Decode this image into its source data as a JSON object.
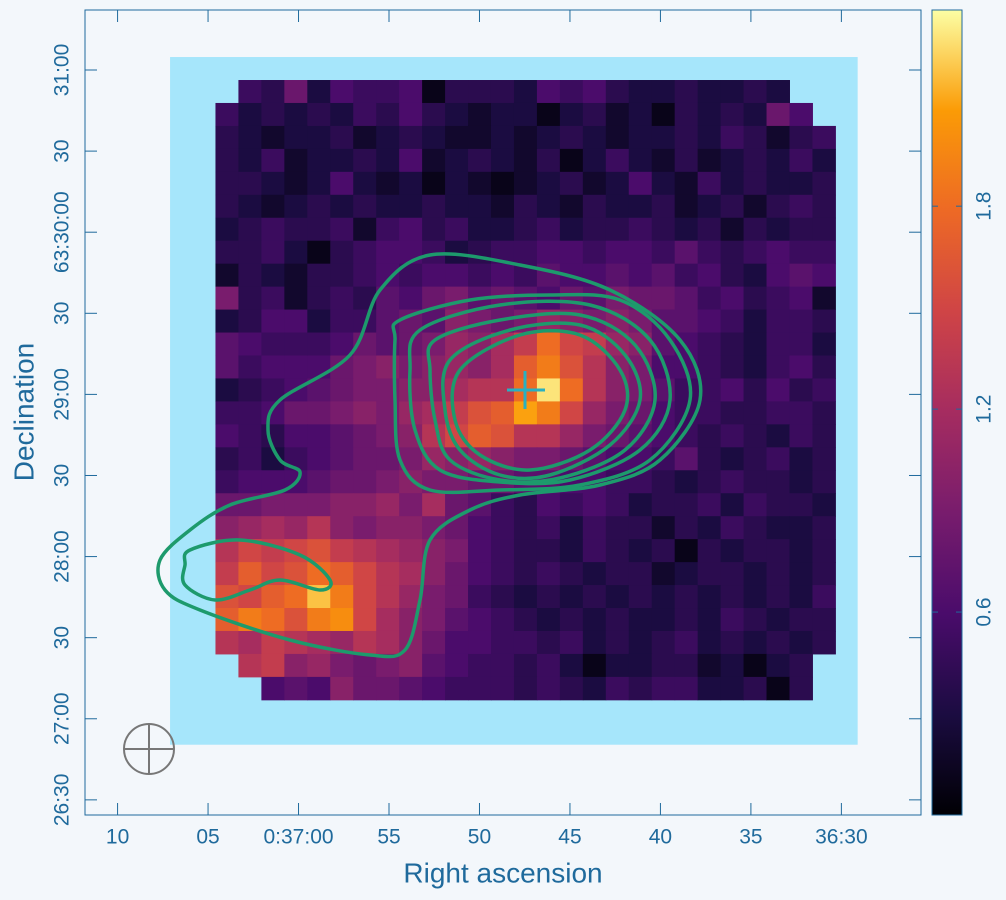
{
  "chart_data": {
    "type": "heatmap",
    "x_label": "Right ascension",
    "y_label": "Declination",
    "xlim": [
      2231.8,
      2185.6
    ],
    "xticks": [
      {
        "value": 2230,
        "label": "10"
      },
      {
        "value": 2225,
        "label": "05"
      },
      {
        "value": 2220,
        "label": "0:37:00"
      },
      {
        "value": 2215,
        "label": "55"
      },
      {
        "value": 2210,
        "label": "50"
      },
      {
        "value": 2205,
        "label": "45"
      },
      {
        "value": 2200,
        "label": "40"
      },
      {
        "value": 2195,
        "label": "35"
      },
      {
        "value": 2190,
        "label": "36:30"
      }
    ],
    "ylim": [
      1584.4,
      1882.2
    ],
    "yticks": [
      {
        "value": 1860,
        "label": "31:00"
      },
      {
        "value": 1830,
        "label": "30"
      },
      {
        "value": 1800,
        "label": "63:30:00"
      },
      {
        "value": 1770,
        "label": "30"
      },
      {
        "value": 1740,
        "label": "29:00"
      },
      {
        "value": 1710,
        "label": "30"
      },
      {
        "value": 1680,
        "label": "28:00"
      },
      {
        "value": 1650,
        "label": "30"
      },
      {
        "value": 1620,
        "label": "27:00"
      },
      {
        "value": 1590,
        "label": "26:30"
      }
    ],
    "coverage": {
      "xlim": [
        2227.1,
        2189.1
      ],
      "ylim": [
        1864.8,
        1610.4
      ],
      "color": "#a6e6fb"
    },
    "image": {
      "xlim": [
        2224.59,
        2190.33
      ],
      "ylim": [
        1856.3,
        1627.0
      ],
      "clim": [
        0,
        2.38
      ],
      "colormap": "inferno",
      "cticks": [
        0.6,
        1.2,
        1.8
      ],
      "z": [
        [
          null,
          0.5,
          0.4,
          0.8,
          0.3,
          0.6,
          0.5,
          0.5,
          0.6,
          0.1,
          0.4,
          0.4,
          0.4,
          0.3,
          0.6,
          0.5,
          0.6,
          0.4,
          0.3,
          0.3,
          0.4,
          0.3,
          0.3,
          0.4,
          0.3,
          null,
          null
        ],
        [
          0.5,
          0.3,
          0.4,
          0.3,
          0.4,
          0.3,
          0.5,
          0.4,
          0.6,
          0.4,
          0.3,
          0.2,
          0.3,
          0.3,
          0.1,
          0.3,
          0.4,
          0.2,
          0.3,
          0.1,
          0.4,
          0.3,
          0.4,
          0.3,
          0.8,
          0.6,
          null
        ],
        [
          0.4,
          0.3,
          0.2,
          0.3,
          0.3,
          0.4,
          0.2,
          0.3,
          0.4,
          0.3,
          0.2,
          0.2,
          0.3,
          0.2,
          0.3,
          0.4,
          0.3,
          0.2,
          0.3,
          0.3,
          0.4,
          0.3,
          0.5,
          0.4,
          0.2,
          0.4,
          0.5
        ],
        [
          0.4,
          0.3,
          0.5,
          0.2,
          0.3,
          0.3,
          0.4,
          0.3,
          0.6,
          0.2,
          0.3,
          0.4,
          0.3,
          0.2,
          0.4,
          0.1,
          0.3,
          0.5,
          0.3,
          0.2,
          0.4,
          0.2,
          0.3,
          0.4,
          0.3,
          0.5,
          0.3
        ],
        [
          0.4,
          0.4,
          0.3,
          0.2,
          0.3,
          0.6,
          0.3,
          0.2,
          0.3,
          0.1,
          0.3,
          0.2,
          0.1,
          0.2,
          0.3,
          0.4,
          0.2,
          0.3,
          0.6,
          0.3,
          0.2,
          0.5,
          0.3,
          0.4,
          0.3,
          0.3,
          0.4
        ],
        [
          0.4,
          0.3,
          0.2,
          0.3,
          0.4,
          0.3,
          0.4,
          0.3,
          0.3,
          0.4,
          0.3,
          0.3,
          0.2,
          0.4,
          0.3,
          0.2,
          0.4,
          0.3,
          0.3,
          0.4,
          0.2,
          0.3,
          0.4,
          0.2,
          0.4,
          0.5,
          0.4
        ],
        [
          0.3,
          0.4,
          0.5,
          0.4,
          0.4,
          0.5,
          0.2,
          0.5,
          0.6,
          0.4,
          0.5,
          0.3,
          0.3,
          0.4,
          0.5,
          0.3,
          0.4,
          0.4,
          0.5,
          0.4,
          0.3,
          0.4,
          0.2,
          0.4,
          0.3,
          0.4,
          0.4
        ],
        [
          0.4,
          0.4,
          0.5,
          0.3,
          0.1,
          0.4,
          0.5,
          0.6,
          0.6,
          0.5,
          0.3,
          0.4,
          0.5,
          0.5,
          0.6,
          0.6,
          0.5,
          0.6,
          0.6,
          0.5,
          0.7,
          0.5,
          0.4,
          0.5,
          0.6,
          0.5,
          0.5
        ],
        [
          0.2,
          0.4,
          0.3,
          0.2,
          0.4,
          0.4,
          0.5,
          0.6,
          0.5,
          0.6,
          0.6,
          0.5,
          0.6,
          0.5,
          0.7,
          0.6,
          0.6,
          0.7,
          0.6,
          0.7,
          0.5,
          0.6,
          0.4,
          0.3,
          0.6,
          0.7,
          0.6
        ],
        [
          0.9,
          0.4,
          0.5,
          0.2,
          0.4,
          0.5,
          0.4,
          0.7,
          0.6,
          0.8,
          0.9,
          0.7,
          0.8,
          0.7,
          0.6,
          0.8,
          0.7,
          0.9,
          0.8,
          0.8,
          0.7,
          0.5,
          0.6,
          0.4,
          0.5,
          0.6,
          0.2
        ],
        [
          0.3,
          0.4,
          0.6,
          0.6,
          0.3,
          0.5,
          0.5,
          0.7,
          0.8,
          0.7,
          1.0,
          0.9,
          0.8,
          0.9,
          1.1,
          1.0,
          0.9,
          1.0,
          0.9,
          0.7,
          0.7,
          0.6,
          0.5,
          0.3,
          0.5,
          0.5,
          0.4
        ],
        [
          0.7,
          0.6,
          0.5,
          0.5,
          0.5,
          0.6,
          0.8,
          0.7,
          0.8,
          0.9,
          1.1,
          1.0,
          1.2,
          1.4,
          1.8,
          1.5,
          1.4,
          1.1,
          1.0,
          0.7,
          0.6,
          0.5,
          0.4,
          0.3,
          0.5,
          0.5,
          0.3
        ],
        [
          0.7,
          0.5,
          0.6,
          0.6,
          0.6,
          0.8,
          0.9,
          1.0,
          0.9,
          1.0,
          1.1,
          1.0,
          1.2,
          1.7,
          1.9,
          1.6,
          1.3,
          1.0,
          0.9,
          0.6,
          0.6,
          0.5,
          0.4,
          0.3,
          0.5,
          0.6,
          0.4
        ],
        [
          0.3,
          0.4,
          0.5,
          0.6,
          0.7,
          0.8,
          0.9,
          0.9,
          1.0,
          1.0,
          1.2,
          1.3,
          1.3,
          1.8,
          2.3,
          1.8,
          1.3,
          1.0,
          0.9,
          0.7,
          0.5,
          0.5,
          0.6,
          0.4,
          0.6,
          0.4,
          0.5
        ],
        [
          0.5,
          0.5,
          0.6,
          0.8,
          0.8,
          0.9,
          1.0,
          0.9,
          1.1,
          1.2,
          1.4,
          1.6,
          1.7,
          2.1,
          1.9,
          1.5,
          1.1,
          0.9,
          0.8,
          0.6,
          0.5,
          0.5,
          0.4,
          0.4,
          0.5,
          0.5,
          0.4
        ],
        [
          0.6,
          0.5,
          0.4,
          0.6,
          0.6,
          0.7,
          0.8,
          0.9,
          1.0,
          1.3,
          1.5,
          1.7,
          1.6,
          1.3,
          1.3,
          1.1,
          0.9,
          0.8,
          0.7,
          0.6,
          0.5,
          0.4,
          0.5,
          0.4,
          0.3,
          0.5,
          0.4
        ],
        [
          0.4,
          0.5,
          0.3,
          0.5,
          0.6,
          0.7,
          0.8,
          0.8,
          0.9,
          1.1,
          1.0,
          1.1,
          1.0,
          0.9,
          0.9,
          0.8,
          0.7,
          0.6,
          0.6,
          0.5,
          0.7,
          0.4,
          0.3,
          0.4,
          0.5,
          0.3,
          0.4
        ],
        [
          0.5,
          0.6,
          0.6,
          0.6,
          0.7,
          0.8,
          0.8,
          0.9,
          1.0,
          0.9,
          0.9,
          0.8,
          0.8,
          0.7,
          0.7,
          0.6,
          0.6,
          0.5,
          0.5,
          0.4,
          0.3,
          0.4,
          0.5,
          0.4,
          0.4,
          0.3,
          0.4
        ],
        [
          0.8,
          0.8,
          0.9,
          0.9,
          0.9,
          1.0,
          1.0,
          1.1,
          0.9,
          1.2,
          0.8,
          0.7,
          0.5,
          0.4,
          0.6,
          0.5,
          0.6,
          0.5,
          0.3,
          0.4,
          0.4,
          0.5,
          0.3,
          0.5,
          0.4,
          0.4,
          0.3
        ],
        [
          1.0,
          1.1,
          1.2,
          1.1,
          1.3,
          1.0,
          0.9,
          1.0,
          1.0,
          0.9,
          0.8,
          0.6,
          0.5,
          0.4,
          0.5,
          0.3,
          0.5,
          0.4,
          0.4,
          0.2,
          0.4,
          0.3,
          0.5,
          0.4,
          0.3,
          0.3,
          0.4
        ],
        [
          1.3,
          1.5,
          1.4,
          1.5,
          1.6,
          1.4,
          1.3,
          1.2,
          1.1,
          1.0,
          0.9,
          0.6,
          0.5,
          0.4,
          0.4,
          0.3,
          0.5,
          0.4,
          0.3,
          0.4,
          0.1,
          0.4,
          0.3,
          0.4,
          0.4,
          0.3,
          0.4
        ],
        [
          1.4,
          1.7,
          1.5,
          1.6,
          1.8,
          1.7,
          1.5,
          1.3,
          1.2,
          1.0,
          0.8,
          0.6,
          0.5,
          0.4,
          0.5,
          0.4,
          0.3,
          0.4,
          0.4,
          0.2,
          0.3,
          0.4,
          0.4,
          0.3,
          0.4,
          0.3,
          0.4
        ],
        [
          1.6,
          1.5,
          1.7,
          1.8,
          2.2,
          1.9,
          1.5,
          1.3,
          1.1,
          0.9,
          0.8,
          0.5,
          0.4,
          0.3,
          0.4,
          0.3,
          0.4,
          0.3,
          0.4,
          0.3,
          0.4,
          0.3,
          0.4,
          0.3,
          0.4,
          0.3,
          0.5
        ],
        [
          1.7,
          1.9,
          1.8,
          1.6,
          1.9,
          2.0,
          1.5,
          1.2,
          1.0,
          0.9,
          0.7,
          0.6,
          0.5,
          0.4,
          0.3,
          0.4,
          0.3,
          0.4,
          0.3,
          0.3,
          0.4,
          0.3,
          0.5,
          0.4,
          0.3,
          0.4,
          0.4
        ],
        [
          1.3,
          1.2,
          1.4,
          1.3,
          1.2,
          1.1,
          1.3,
          1.2,
          1.0,
          0.8,
          0.6,
          0.6,
          0.5,
          0.5,
          0.4,
          0.5,
          0.3,
          0.4,
          0.3,
          0.4,
          0.5,
          0.3,
          0.4,
          0.3,
          0.4,
          0.3,
          0.4
        ],
        [
          null,
          1.3,
          1.4,
          1.0,
          1.1,
          0.9,
          0.8,
          0.9,
          1.0,
          0.7,
          0.6,
          0.5,
          0.5,
          0.4,
          0.5,
          0.3,
          0.1,
          0.3,
          0.3,
          0.4,
          0.4,
          0.2,
          0.3,
          0.1,
          0.3,
          0.4,
          null
        ],
        [
          null,
          null,
          0.6,
          0.7,
          0.6,
          1.0,
          0.8,
          0.8,
          0.7,
          0.6,
          0.5,
          0.5,
          0.5,
          0.4,
          0.5,
          0.4,
          0.3,
          0.5,
          0.4,
          0.5,
          0.5,
          0.3,
          0.3,
          0.4,
          0.1,
          0.4,
          null
        ]
      ]
    }
  }
}
